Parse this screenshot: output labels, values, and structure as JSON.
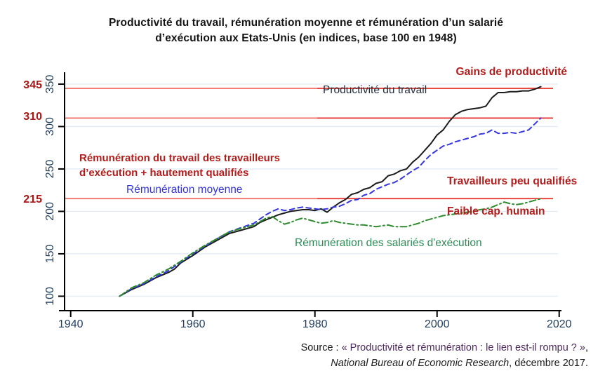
{
  "title": {
    "line1": "Productivité du travail, rémunération moyenne et rémunération d’un salarié",
    "line2": "d’exécution aux Etats-Unis (en indices, base 100 en 1948)"
  },
  "annotations": {
    "gains": "Gains de productivité",
    "productivity_label": "Productivité du travail",
    "remuneration_block_line1": "Rémunération du travail des travailleurs",
    "remuneration_block_line2": "d’exécution + hautement qualifiés",
    "remuneration_moyenne": "Rémunération moyenne",
    "travailleurs_peu_qualifies": "Travailleurs peu qualifiés",
    "faible_cap_humain": "Faible cap. humain",
    "remuneration_exec": "Rémunération des salariés d'exécution",
    "ref_345": "345",
    "ref_310": "310",
    "ref_215": "215"
  },
  "source": {
    "prefix": "Source : ",
    "quoted": "« Productivité et rémunération : le lien est-il rompu ? »",
    "suffix": ",",
    "journal": "National Bureau of Economic Research",
    "tail": ", décembre 2017."
  },
  "colors": {
    "dark_red_text": "#b21d1d",
    "refline_left": "#f26b62",
    "refline_right": "#e5312a",
    "axis": "#000000",
    "gridline": "#e3ecf3",
    "tick_label": "#24405e",
    "productivity_curve": "#1c1c1c",
    "average_comp_curve": "#3636e0",
    "exec_comp_curve": "#2e8b2e"
  },
  "chart_data": {
    "type": "line",
    "title": "Productivité du travail, rémunération moyenne et rémunération d’un salarié d’exécution aux Etats-Unis (en indices, base 100 en 1948)",
    "xlabel": "",
    "ylabel": "",
    "x_ticks": [
      1940,
      1960,
      1980,
      2000,
      2020
    ],
    "y_ticks": [
      100,
      150,
      200,
      250,
      300,
      350
    ],
    "xlim": [
      1939,
      2019.8
    ],
    "ylim": [
      83,
      364
    ],
    "grid": "horizontal",
    "legend_position": "inline-annotations",
    "reference_lines": [
      345,
      310,
      215
    ],
    "series": [
      {
        "name": "Productivité du travail",
        "color": "#1c1c1c",
        "dash": "solid",
        "points": [
          [
            1948,
            100
          ],
          [
            1950,
            108
          ],
          [
            1952,
            114
          ],
          [
            1954,
            122
          ],
          [
            1956,
            128
          ],
          [
            1957,
            132
          ],
          [
            1958,
            139
          ],
          [
            1960,
            148
          ],
          [
            1962,
            158
          ],
          [
            1964,
            166
          ],
          [
            1966,
            174
          ],
          [
            1968,
            178
          ],
          [
            1970,
            182
          ],
          [
            1971,
            187
          ],
          [
            1972,
            190
          ],
          [
            1973,
            193
          ],
          [
            1974,
            196
          ],
          [
            1975,
            198
          ],
          [
            1976,
            200
          ],
          [
            1977,
            201
          ],
          [
            1978,
            202
          ],
          [
            1979,
            202
          ],
          [
            1980,
            201
          ],
          [
            1981,
            203
          ],
          [
            1982,
            199
          ],
          [
            1983,
            205
          ],
          [
            1984,
            210
          ],
          [
            1985,
            214
          ],
          [
            1986,
            220
          ],
          [
            1987,
            222
          ],
          [
            1988,
            226
          ],
          [
            1989,
            228
          ],
          [
            1990,
            233
          ],
          [
            1991,
            235
          ],
          [
            1992,
            242
          ],
          [
            1993,
            244
          ],
          [
            1994,
            248
          ],
          [
            1995,
            250
          ],
          [
            1996,
            258
          ],
          [
            1997,
            264
          ],
          [
            1998,
            272
          ],
          [
            1999,
            280
          ],
          [
            2000,
            290
          ],
          [
            2001,
            296
          ],
          [
            2002,
            306
          ],
          [
            2003,
            314
          ],
          [
            2004,
            318
          ],
          [
            2005,
            320
          ],
          [
            2006,
            321
          ],
          [
            2007,
            322
          ],
          [
            2008,
            324
          ],
          [
            2009,
            334
          ],
          [
            2010,
            340
          ],
          [
            2011,
            340
          ],
          [
            2012,
            341
          ],
          [
            2013,
            341
          ],
          [
            2014,
            342
          ],
          [
            2015,
            342
          ],
          [
            2016,
            344
          ],
          [
            2017,
            347
          ]
        ]
      },
      {
        "name": "Rémunération moyenne",
        "color": "#3636e0",
        "dash": "dash",
        "points": [
          [
            1948,
            100
          ],
          [
            1950,
            109
          ],
          [
            1952,
            115
          ],
          [
            1954,
            123
          ],
          [
            1956,
            130
          ],
          [
            1958,
            140
          ],
          [
            1960,
            150
          ],
          [
            1962,
            159
          ],
          [
            1964,
            168
          ],
          [
            1966,
            176
          ],
          [
            1968,
            181
          ],
          [
            1970,
            186
          ],
          [
            1971,
            191
          ],
          [
            1972,
            196
          ],
          [
            1973,
            200
          ],
          [
            1974,
            203
          ],
          [
            1975,
            201
          ],
          [
            1976,
            202
          ],
          [
            1977,
            204
          ],
          [
            1978,
            205
          ],
          [
            1979,
            204
          ],
          [
            1980,
            203
          ],
          [
            1981,
            202
          ],
          [
            1982,
            203
          ],
          [
            1983,
            205
          ],
          [
            1984,
            206
          ],
          [
            1985,
            209
          ],
          [
            1986,
            213
          ],
          [
            1987,
            214
          ],
          [
            1988,
            219
          ],
          [
            1989,
            221
          ],
          [
            1990,
            226
          ],
          [
            1991,
            229
          ],
          [
            1992,
            232
          ],
          [
            1993,
            234
          ],
          [
            1994,
            238
          ],
          [
            1995,
            243
          ],
          [
            1996,
            248
          ],
          [
            1997,
            252
          ],
          [
            1998,
            260
          ],
          [
            1999,
            267
          ],
          [
            2000,
            272
          ],
          [
            2001,
            277
          ],
          [
            2002,
            279
          ],
          [
            2003,
            282
          ],
          [
            2004,
            284
          ],
          [
            2005,
            286
          ],
          [
            2006,
            288
          ],
          [
            2007,
            291
          ],
          [
            2008,
            292
          ],
          [
            2009,
            296
          ],
          [
            2010,
            292
          ],
          [
            2011,
            292
          ],
          [
            2012,
            293
          ],
          [
            2013,
            292
          ],
          [
            2014,
            294
          ],
          [
            2015,
            296
          ],
          [
            2016,
            303
          ],
          [
            2017,
            310
          ]
        ]
      },
      {
        "name": "Rémunération des salariés d'exécution",
        "color": "#2e8b2e",
        "dash": "dashdot",
        "points": [
          [
            1948,
            100
          ],
          [
            1950,
            110
          ],
          [
            1952,
            116
          ],
          [
            1954,
            125
          ],
          [
            1956,
            132
          ],
          [
            1958,
            141
          ],
          [
            1960,
            151
          ],
          [
            1962,
            160
          ],
          [
            1964,
            168
          ],
          [
            1966,
            176
          ],
          [
            1968,
            180
          ],
          [
            1970,
            184
          ],
          [
            1971,
            188
          ],
          [
            1972,
            192
          ],
          [
            1973,
            194
          ],
          [
            1974,
            189
          ],
          [
            1975,
            185
          ],
          [
            1976,
            187
          ],
          [
            1977,
            190
          ],
          [
            1978,
            192
          ],
          [
            1979,
            190
          ],
          [
            1980,
            188
          ],
          [
            1981,
            186
          ],
          [
            1982,
            187
          ],
          [
            1983,
            189
          ],
          [
            1984,
            187
          ],
          [
            1985,
            186
          ],
          [
            1986,
            185
          ],
          [
            1987,
            184
          ],
          [
            1988,
            184
          ],
          [
            1989,
            183
          ],
          [
            1990,
            182
          ],
          [
            1991,
            183
          ],
          [
            1992,
            184
          ],
          [
            1993,
            182
          ],
          [
            1994,
            182
          ],
          [
            1995,
            182
          ],
          [
            1996,
            184
          ],
          [
            1997,
            186
          ],
          [
            1998,
            189
          ],
          [
            1999,
            191
          ],
          [
            2000,
            193
          ],
          [
            2001,
            195
          ],
          [
            2002,
            196
          ],
          [
            2003,
            197
          ],
          [
            2004,
            198
          ],
          [
            2005,
            199
          ],
          [
            2006,
            200
          ],
          [
            2007,
            202
          ],
          [
            2008,
            203
          ],
          [
            2009,
            205
          ],
          [
            2010,
            208
          ],
          [
            2011,
            211
          ],
          [
            2012,
            209
          ],
          [
            2013,
            208
          ],
          [
            2014,
            209
          ],
          [
            2015,
            211
          ],
          [
            2016,
            213
          ],
          [
            2017,
            215
          ]
        ]
      }
    ]
  }
}
